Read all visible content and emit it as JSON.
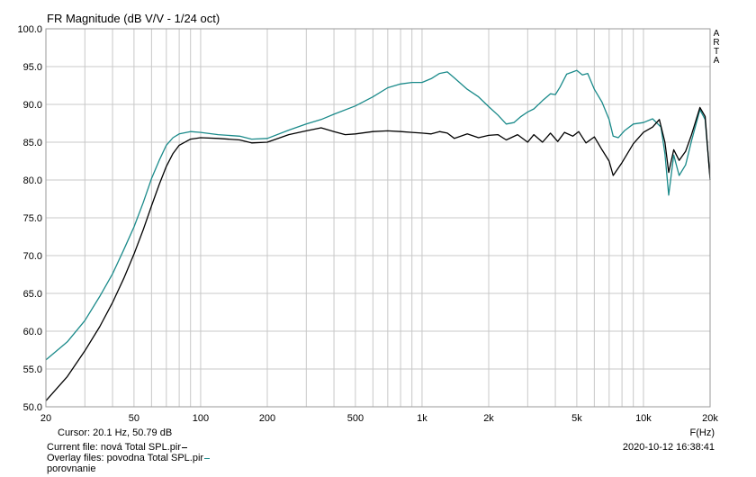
{
  "chart_data": {
    "type": "line",
    "title": "FR Magnitude (dB V/V - 1/24 oct)",
    "xlabel": "F(Hz)",
    "ylabel": "",
    "xscale": "log",
    "xlim": [
      20,
      20000
    ],
    "ylim": [
      50,
      100
    ],
    "grid": true,
    "yticks": [
      "100.0",
      "95.0",
      "90.0",
      "85.0",
      "80.0",
      "75.0",
      "70.0",
      "65.0",
      "60.0",
      "55.0",
      "50.0"
    ],
    "xticks": [
      {
        "label": "20",
        "value": 20
      },
      {
        "label": "50",
        "value": 50
      },
      {
        "label": "100",
        "value": 100
      },
      {
        "label": "200",
        "value": 200
      },
      {
        "label": "500",
        "value": 500
      },
      {
        "label": "1k",
        "value": 1000
      },
      {
        "label": "2k",
        "value": 2000
      },
      {
        "label": "5k",
        "value": 5000
      },
      {
        "label": "10k",
        "value": 10000
      },
      {
        "label": "20k",
        "value": 20000
      }
    ],
    "series": [
      {
        "color": "#1a8a8a",
        "points": [
          [
            20,
            56.2
          ],
          [
            25,
            58.6
          ],
          [
            30,
            61.4
          ],
          [
            35,
            64.6
          ],
          [
            40,
            67.6
          ],
          [
            45,
            70.8
          ],
          [
            50,
            73.8
          ],
          [
            55,
            77.0
          ],
          [
            60,
            80.2
          ],
          [
            65,
            82.6
          ],
          [
            70,
            84.6
          ],
          [
            75,
            85.6
          ],
          [
            80,
            86.1
          ],
          [
            90,
            86.4
          ],
          [
            100,
            86.3
          ],
          [
            120,
            86.0
          ],
          [
            150,
            85.8
          ],
          [
            170,
            85.4
          ],
          [
            200,
            85.5
          ],
          [
            250,
            86.6
          ],
          [
            300,
            87.4
          ],
          [
            350,
            88.0
          ],
          [
            400,
            88.7
          ],
          [
            500,
            89.8
          ],
          [
            600,
            91.0
          ],
          [
            700,
            92.2
          ],
          [
            800,
            92.7
          ],
          [
            900,
            92.9
          ],
          [
            1000,
            92.9
          ],
          [
            1100,
            93.4
          ],
          [
            1200,
            94.1
          ],
          [
            1300,
            94.3
          ],
          [
            1400,
            93.5
          ],
          [
            1600,
            92.0
          ],
          [
            1800,
            91.0
          ],
          [
            2000,
            89.7
          ],
          [
            2200,
            88.6
          ],
          [
            2400,
            87.4
          ],
          [
            2600,
            87.6
          ],
          [
            2800,
            88.4
          ],
          [
            3000,
            89.0
          ],
          [
            3200,
            89.4
          ],
          [
            3500,
            90.5
          ],
          [
            3800,
            91.4
          ],
          [
            4000,
            91.3
          ],
          [
            4200,
            92.3
          ],
          [
            4500,
            94.0
          ],
          [
            4800,
            94.3
          ],
          [
            5000,
            94.5
          ],
          [
            5300,
            93.9
          ],
          [
            5600,
            94.1
          ],
          [
            6000,
            92.0
          ],
          [
            6500,
            90.3
          ],
          [
            7000,
            88.0
          ],
          [
            7300,
            85.8
          ],
          [
            7700,
            85.6
          ],
          [
            8200,
            86.5
          ],
          [
            9000,
            87.4
          ],
          [
            10000,
            87.6
          ],
          [
            11000,
            88.1
          ],
          [
            12000,
            87.0
          ],
          [
            12500,
            83.5
          ],
          [
            13000,
            78.0
          ],
          [
            13700,
            83.3
          ],
          [
            14500,
            80.6
          ],
          [
            15500,
            82.0
          ],
          [
            16500,
            85.2
          ],
          [
            18000,
            89.3
          ],
          [
            19000,
            88.0
          ],
          [
            20000,
            80.2
          ]
        ]
      },
      {
        "color": "#000000",
        "points": [
          [
            20,
            50.8
          ],
          [
            25,
            54.0
          ],
          [
            30,
            57.4
          ],
          [
            35,
            60.6
          ],
          [
            40,
            63.8
          ],
          [
            45,
            67.0
          ],
          [
            50,
            70.2
          ],
          [
            55,
            73.4
          ],
          [
            60,
            76.6
          ],
          [
            65,
            79.4
          ],
          [
            70,
            81.8
          ],
          [
            75,
            83.5
          ],
          [
            80,
            84.6
          ],
          [
            90,
            85.4
          ],
          [
            100,
            85.6
          ],
          [
            120,
            85.5
          ],
          [
            150,
            85.3
          ],
          [
            170,
            84.9
          ],
          [
            200,
            85.0
          ],
          [
            250,
            86.0
          ],
          [
            300,
            86.5
          ],
          [
            350,
            86.9
          ],
          [
            400,
            86.4
          ],
          [
            450,
            86.0
          ],
          [
            500,
            86.1
          ],
          [
            600,
            86.4
          ],
          [
            700,
            86.5
          ],
          [
            800,
            86.4
          ],
          [
            900,
            86.3
          ],
          [
            1000,
            86.2
          ],
          [
            1100,
            86.1
          ],
          [
            1200,
            86.4
          ],
          [
            1300,
            86.2
          ],
          [
            1400,
            85.5
          ],
          [
            1600,
            86.1
          ],
          [
            1800,
            85.6
          ],
          [
            2000,
            85.9
          ],
          [
            2200,
            86.0
          ],
          [
            2400,
            85.3
          ],
          [
            2700,
            86.0
          ],
          [
            3000,
            85.0
          ],
          [
            3200,
            86.0
          ],
          [
            3500,
            85.0
          ],
          [
            3800,
            86.2
          ],
          [
            4100,
            85.1
          ],
          [
            4400,
            86.3
          ],
          [
            4800,
            85.8
          ],
          [
            5100,
            86.4
          ],
          [
            5500,
            84.9
          ],
          [
            6000,
            85.7
          ],
          [
            6500,
            84.0
          ],
          [
            7000,
            82.5
          ],
          [
            7300,
            80.6
          ],
          [
            8000,
            82.3
          ],
          [
            9000,
            84.8
          ],
          [
            10000,
            86.3
          ],
          [
            11000,
            87.0
          ],
          [
            11800,
            88.0
          ],
          [
            12500,
            85.0
          ],
          [
            13000,
            81.0
          ],
          [
            13700,
            84.0
          ],
          [
            14500,
            82.6
          ],
          [
            15500,
            83.8
          ],
          [
            16500,
            86.0
          ],
          [
            18000,
            89.6
          ],
          [
            19000,
            88.4
          ],
          [
            20000,
            80.0
          ]
        ]
      }
    ]
  },
  "labels": {
    "title": "FR Magnitude (dB V/V - 1/24 oct)",
    "vendor": [
      "A",
      "R",
      "T",
      "A"
    ],
    "funit": "F(Hz)",
    "cursor": "Cursor: 20.1 Hz, 50.79 dB",
    "current_file": "Current file: nová Total SPL.pir",
    "overlay_files": "Overlay files: povodna Total SPL.pir",
    "overlay_files_cont": "porovnanie",
    "timestamp": "2020-10-12  16:38:41"
  },
  "colors": {
    "overlay": "#1a8a8a",
    "current": "#000000",
    "grid": "#c8c8c8",
    "axis": "#9a9a9a"
  }
}
